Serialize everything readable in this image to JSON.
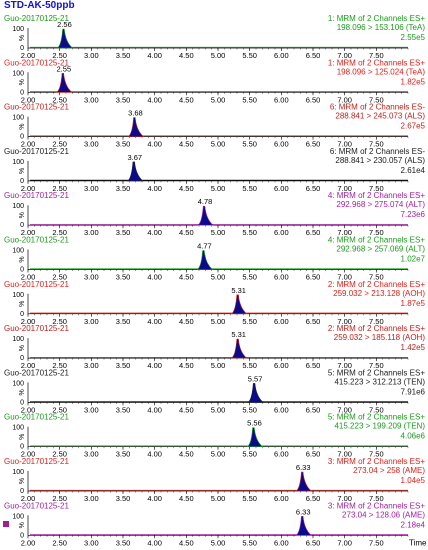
{
  "page_title": "STD-AK-50ppb",
  "colors": {
    "peak_fill": "#0a0a8c",
    "axis": "#000000"
  },
  "chart_data": [
    {
      "type": "line",
      "sample": "Guo-20170125-21",
      "rt": "2.56",
      "mrm": "1: MRM of 2 Channels ES+",
      "transition": "198.096 > 153.106 (TeA)",
      "intensity": "2.55e5",
      "color": "#1a9a1a",
      "peak_x": 2.56,
      "peak_height": 100,
      "xlim": [
        2.0,
        8.0
      ],
      "y_ticks": [
        "100",
        "%",
        "0"
      ],
      "x_ticks": [
        "2.00",
        "2.50",
        "3.00",
        "3.50",
        "4.00",
        "4.50",
        "5.00",
        "5.50",
        "6.00",
        "6.50",
        "7.00",
        "7.50"
      ]
    },
    {
      "type": "line",
      "sample": "Guo-20170125-21",
      "rt": "2.55",
      "mrm": "1: MRM of 2 Channels ES+",
      "transition": "198.096 > 125.024 (TeA)",
      "intensity": "1.82e5",
      "color": "#e0201a",
      "peak_x": 2.55,
      "peak_height": 100,
      "xlim": [
        2.0,
        8.0
      ],
      "y_ticks": [
        "100",
        "%",
        "0"
      ],
      "x_ticks": [
        "2.00",
        "2.50",
        "3.00",
        "3.50",
        "4.00",
        "4.50",
        "5.00",
        "5.50",
        "6.00",
        "6.50",
        "7.00",
        "7.50"
      ]
    },
    {
      "type": "line",
      "sample": "Guo-20170125-21",
      "rt": "3.68",
      "mrm": "6: MRM of 2 Channels ES-",
      "transition": "288.841 > 245.073 (ALS)",
      "intensity": "2.67e5",
      "color": "#c0201a",
      "peak_x": 3.68,
      "peak_height": 100,
      "xlim": [
        2.0,
        8.0
      ],
      "y_ticks": [
        "100",
        "%",
        "0"
      ],
      "x_ticks": [
        "2.00",
        "2.50",
        "3.00",
        "3.50",
        "4.00",
        "4.50",
        "5.00",
        "5.50",
        "6.00",
        "6.50",
        "7.00",
        "7.50"
      ]
    },
    {
      "type": "line",
      "sample": "Guo-20170125-21",
      "rt": "3.67",
      "mrm": "6: MRM of 2 Channels ES-",
      "transition": "288.841 > 230.057 (ALS)",
      "intensity": "2.61e4",
      "color": "#202020",
      "peak_x": 3.67,
      "peak_height": 100,
      "xlim": [
        2.0,
        8.0
      ],
      "y_ticks": [
        "100",
        "%",
        "0"
      ],
      "x_ticks": [
        "2.00",
        "2.50",
        "3.00",
        "3.50",
        "4.00",
        "4.50",
        "5.00",
        "5.50",
        "6.00",
        "6.50",
        "7.00",
        "7.50"
      ]
    },
    {
      "type": "line",
      "sample": "Guo-20170125-21",
      "rt": "4.78",
      "mrm": "4: MRM of 2 Channels ES+",
      "transition": "292.968 > 275.074 (ALT)",
      "intensity": "7.23e6",
      "color": "#a020a0",
      "peak_x": 4.78,
      "peak_height": 100,
      "xlim": [
        2.0,
        8.0
      ],
      "y_ticks": [
        "100",
        "%",
        "0"
      ],
      "x_ticks": [
        "2.00",
        "2.50",
        "3.00",
        "3.50",
        "4.00",
        "4.50",
        "5.00",
        "5.50",
        "6.00",
        "6.50",
        "7.00",
        "7.50"
      ]
    },
    {
      "type": "line",
      "sample": "Guo-20170125-21",
      "rt": "4.77",
      "mrm": "4: MRM of 2 Channels ES+",
      "transition": "292.968 > 257.069 (ALT)",
      "intensity": "1.02e7",
      "color": "#1a9a1a",
      "peak_x": 4.77,
      "peak_height": 100,
      "xlim": [
        2.0,
        8.0
      ],
      "y_ticks": [
        "100",
        "%",
        "0"
      ],
      "x_ticks": [
        "2.00",
        "2.50",
        "3.00",
        "3.50",
        "4.00",
        "4.50",
        "5.00",
        "5.50",
        "6.00",
        "6.50",
        "7.00",
        "7.50"
      ]
    },
    {
      "type": "line",
      "sample": "Guo-20170125-21",
      "rt": "5.31",
      "mrm": "2: MRM of 2 Channels ES+",
      "transition": "259.032 > 213.128 (AOH)",
      "intensity": "1.87e5",
      "color": "#e0201a",
      "peak_x": 5.31,
      "peak_height": 100,
      "xlim": [
        2.0,
        8.0
      ],
      "y_ticks": [
        "100",
        "%",
        "0"
      ],
      "x_ticks": [
        "2.00",
        "2.50",
        "3.00",
        "3.50",
        "4.00",
        "4.50",
        "5.00",
        "5.50",
        "6.00",
        "6.50",
        "7.00",
        "7.50"
      ]
    },
    {
      "type": "line",
      "sample": "Guo-20170125-21",
      "rt": "5.31",
      "mrm": "2: MRM of 2 Channels ES+",
      "transition": "259.032 > 185.118 (AOH)",
      "intensity": "1.42e5",
      "color": "#c0201a",
      "peak_x": 5.31,
      "peak_height": 100,
      "xlim": [
        2.0,
        8.0
      ],
      "y_ticks": [
        "100",
        "%",
        "0"
      ],
      "x_ticks": [
        "2.00",
        "2.50",
        "3.00",
        "3.50",
        "4.00",
        "4.50",
        "5.00",
        "5.50",
        "6.00",
        "6.50",
        "7.00",
        "7.50"
      ]
    },
    {
      "type": "line",
      "sample": "Guo-20170125-21",
      "rt": "5.57",
      "mrm": "5: MRM of 2 Channels ES+",
      "transition": "415.223 > 312.213 (TEN)",
      "intensity": "7.91e6",
      "color": "#202020",
      "peak_x": 5.57,
      "peak_height": 100,
      "xlim": [
        2.0,
        8.0
      ],
      "y_ticks": [
        "100",
        "%",
        "0"
      ],
      "x_ticks": [
        "2.00",
        "2.50",
        "3.00",
        "3.50",
        "4.00",
        "4.50",
        "5.00",
        "5.50",
        "6.00",
        "6.50",
        "7.00",
        "7.50"
      ]
    },
    {
      "type": "line",
      "sample": "Guo-20170125-21",
      "rt": "5.56",
      "mrm": "5: MRM of 2 Channels ES+",
      "transition": "415.223 > 199.209 (TEN)",
      "intensity": "4.06e6",
      "color": "#1a9a1a",
      "peak_x": 5.56,
      "peak_height": 100,
      "xlim": [
        2.0,
        8.0
      ],
      "y_ticks": [
        "100",
        "%",
        "0"
      ],
      "x_ticks": [
        "2.00",
        "2.50",
        "3.00",
        "3.50",
        "4.00",
        "4.50",
        "5.00",
        "5.50",
        "6.00",
        "6.50",
        "7.00",
        "7.50"
      ]
    },
    {
      "type": "line",
      "sample": "Guo-20170125-21",
      "rt": "6.33",
      "mrm": "3: MRM of 2 Channels ES+",
      "transition": "273.04 > 258 (AME)",
      "intensity": "1.04e5",
      "color": "#e0201a",
      "peak_x": 6.33,
      "peak_height": 100,
      "xlim": [
        2.0,
        8.0
      ],
      "y_ticks": [
        "100",
        "%",
        "0"
      ],
      "x_ticks": [
        "2.00",
        "2.50",
        "3.00",
        "3.50",
        "4.00",
        "4.50",
        "5.00",
        "5.50",
        "6.00",
        "6.50",
        "7.00",
        "7.50"
      ]
    },
    {
      "type": "line",
      "sample": "Guo-20170125-21",
      "rt": "6.33",
      "mrm": "3: MRM of 2 Channels ES+",
      "transition": "273.04 > 128.06 (AME)",
      "intensity": "2.18e4",
      "color": "#a020a0",
      "peak_x": 6.33,
      "peak_height": 100,
      "xlim": [
        2.0,
        8.0
      ],
      "y_ticks": [
        "100",
        "%",
        "0"
      ],
      "x_ticks": [
        "2.00",
        "2.50",
        "3.00",
        "3.50",
        "4.00",
        "4.50",
        "5.00",
        "5.50",
        "6.00",
        "6.50",
        "7.00",
        "7.50"
      ],
      "xlabel": "Time"
    }
  ]
}
